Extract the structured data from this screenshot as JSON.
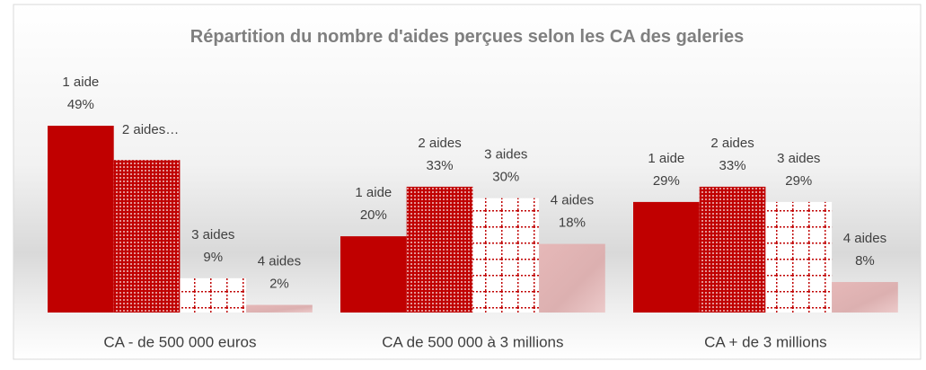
{
  "chart_data": {
    "type": "bar",
    "title": "Répartition du nombre d'aides perçues selon les CA des galeries",
    "categories": [
      "CA  - de 500 000 euros",
      "CA de 500 000 à 3 millions",
      "CA + de  3 millions"
    ],
    "series": [
      {
        "name": "1 aide",
        "color": "#c00000",
        "pattern": "solid",
        "values": [
          49,
          20,
          29
        ],
        "value_labels": [
          "49%",
          "20%",
          "29%"
        ]
      },
      {
        "name": "2 aides",
        "color": "#c00000",
        "pattern": "dots",
        "values": [
          40,
          33,
          33
        ],
        "value_labels": [
          null,
          "33%",
          "33%"
        ]
      },
      {
        "name": "3 aides",
        "color": "#c00000",
        "pattern": "grid",
        "values": [
          9,
          30,
          29
        ],
        "value_labels": [
          "9%",
          "30%",
          "29%"
        ]
      },
      {
        "name": "4 aides",
        "color": "#e6b8b8",
        "pattern": "gradient",
        "values": [
          2,
          18,
          8
        ],
        "value_labels": [
          "2%",
          "18%",
          "8%"
        ]
      }
    ],
    "annotations": [
      "2 aides…"
    ]
  }
}
